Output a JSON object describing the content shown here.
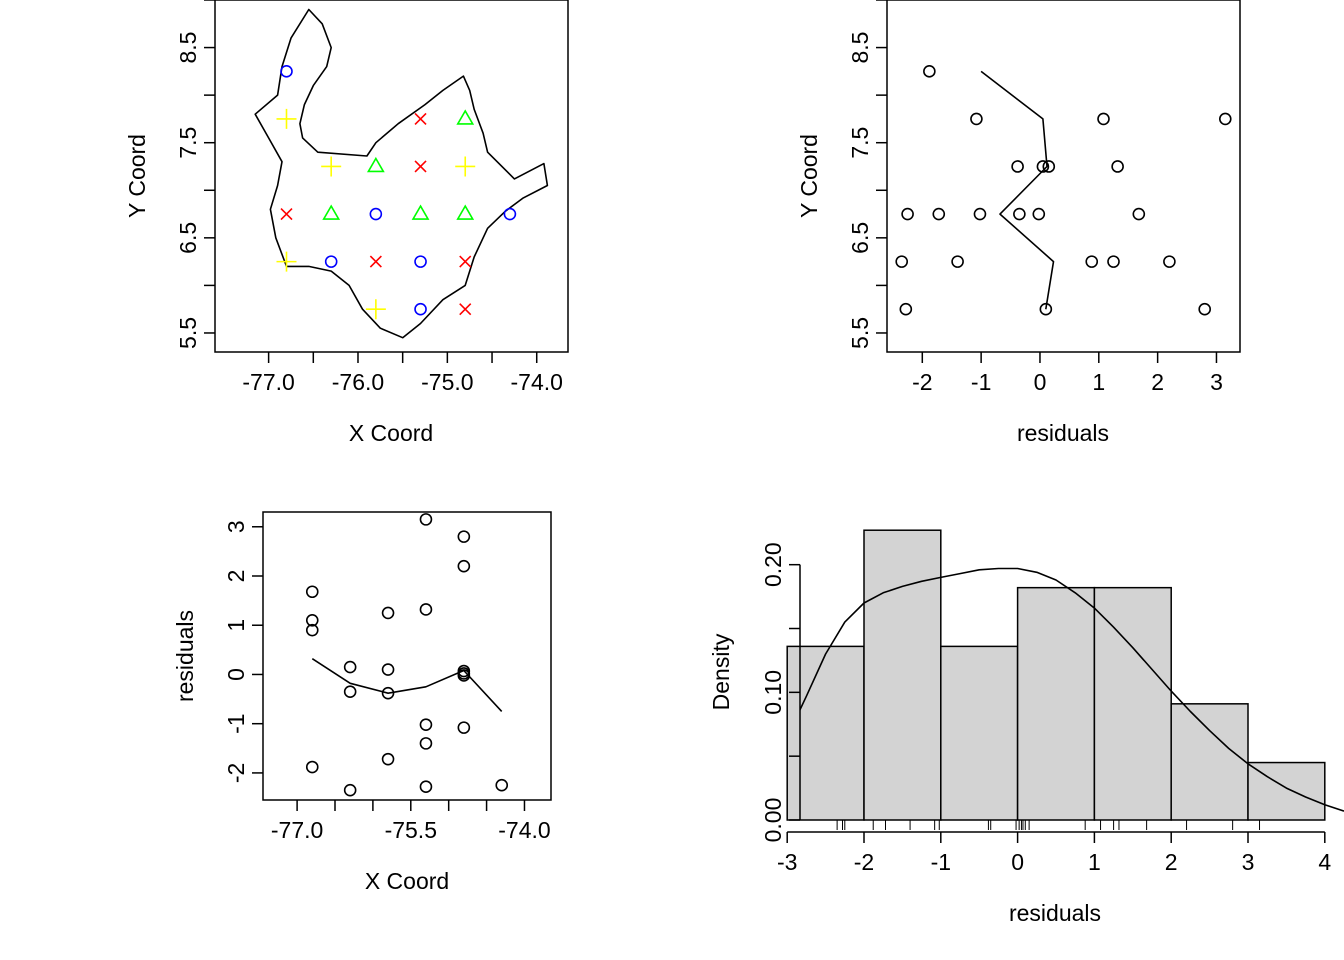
{
  "chart_data": [
    {
      "type": "scatter",
      "panel": "map",
      "xlabel": "X Coord",
      "ylabel": "Y Coord",
      "xlim": [
        -77.6,
        -73.65
      ],
      "ylim": [
        5.3,
        9.0
      ],
      "xticks": [
        -77,
        -76.5,
        -76,
        -75.5,
        -75,
        -74.5,
        -74
      ],
      "xtick_labels": [
        "-77.0",
        "",
        "-76.0",
        "",
        "-75.0",
        "",
        "-74.0"
      ],
      "yticks": [
        5.5,
        6,
        6.5,
        7,
        7.5,
        8,
        8.5,
        9
      ],
      "ytick_labels": [
        "5.5",
        "",
        "6.5",
        "",
        "7.5",
        "",
        "8.5",
        ""
      ],
      "grid": false,
      "boundary": [
        [
          -76.55,
          8.9
        ],
        [
          -76.4,
          8.75
        ],
        [
          -76.3,
          8.5
        ],
        [
          -76.35,
          8.3
        ],
        [
          -76.5,
          8.1
        ],
        [
          -76.6,
          7.9
        ],
        [
          -76.65,
          7.7
        ],
        [
          -76.62,
          7.55
        ],
        [
          -76.45,
          7.4
        ],
        [
          -75.9,
          7.36
        ],
        [
          -75.8,
          7.5
        ],
        [
          -75.55,
          7.7
        ],
        [
          -75.25,
          7.9
        ],
        [
          -75.05,
          8.05
        ],
        [
          -74.82,
          8.2
        ],
        [
          -74.75,
          8.05
        ],
        [
          -74.7,
          7.85
        ],
        [
          -74.6,
          7.6
        ],
        [
          -74.55,
          7.4
        ],
        [
          -74.25,
          7.12
        ],
        [
          -73.92,
          7.28
        ],
        [
          -73.88,
          7.05
        ],
        [
          -74.15,
          6.92
        ],
        [
          -74.35,
          6.78
        ],
        [
          -74.55,
          6.6
        ],
        [
          -74.7,
          6.3
        ],
        [
          -74.8,
          6.0
        ],
        [
          -75.05,
          5.85
        ],
        [
          -75.3,
          5.6
        ],
        [
          -75.5,
          5.45
        ],
        [
          -75.75,
          5.55
        ],
        [
          -75.95,
          5.75
        ],
        [
          -76.1,
          6.0
        ],
        [
          -76.3,
          6.15
        ],
        [
          -76.55,
          6.2
        ],
        [
          -76.8,
          6.2
        ],
        [
          -76.92,
          6.5
        ],
        [
          -76.98,
          6.8
        ],
        [
          -76.9,
          7.05
        ],
        [
          -76.85,
          7.3
        ],
        [
          -77.0,
          7.55
        ],
        [
          -77.15,
          7.8
        ],
        [
          -76.9,
          8.0
        ],
        [
          -76.85,
          8.3
        ],
        [
          -76.75,
          8.6
        ]
      ],
      "series": [
        {
          "marker": "circle",
          "color": "#0000ff",
          "points": [
            [
              -76.8,
              8.25
            ],
            [
              -76.3,
              6.25
            ],
            [
              -75.8,
              6.75
            ],
            [
              -75.3,
              6.25
            ],
            [
              -75.3,
              5.75
            ],
            [
              -74.3,
              6.75
            ]
          ]
        },
        {
          "marker": "cross",
          "color": "#ff0000",
          "points": [
            [
              -76.8,
              6.75
            ],
            [
              -75.8,
              6.25
            ],
            [
              -75.3,
              7.75
            ],
            [
              -75.3,
              7.25
            ],
            [
              -74.8,
              6.25
            ],
            [
              -74.8,
              5.75
            ]
          ]
        },
        {
          "marker": "triangle",
          "color": "#00ff00",
          "points": [
            [
              -75.8,
              7.25
            ],
            [
              -76.3,
              6.75
            ],
            [
              -75.3,
              6.75
            ],
            [
              -74.8,
              6.75
            ],
            [
              -74.8,
              7.75
            ]
          ]
        },
        {
          "marker": "plus",
          "color": "#ffff00",
          "points": [
            [
              -76.8,
              7.75
            ],
            [
              -76.3,
              7.25
            ],
            [
              -74.8,
              7.25
            ],
            [
              -76.8,
              6.25
            ],
            [
              -75.8,
              5.75
            ]
          ]
        }
      ]
    },
    {
      "type": "scatter",
      "panel": "resid-vs-y",
      "xlabel": "residuals",
      "ylabel": "Y Coord",
      "xlim": [
        -2.6,
        3.4
      ],
      "ylim": [
        5.3,
        9.0
      ],
      "xticks": [
        -2,
        -1,
        0,
        1,
        2,
        3
      ],
      "xtick_labels": [
        "-2",
        "-1",
        "0",
        "1",
        "2",
        "3"
      ],
      "yticks": [
        5.5,
        6,
        6.5,
        7,
        7.5,
        8,
        8.5,
        9
      ],
      "ytick_labels": [
        "5.5",
        "",
        "6.5",
        "",
        "7.5",
        "",
        "8.5",
        ""
      ],
      "grid": false,
      "points": [
        [
          -1.88,
          8.25
        ],
        [
          -1.08,
          7.75
        ],
        [
          1.08,
          7.75
        ],
        [
          3.15,
          7.75
        ],
        [
          -0.38,
          7.25
        ],
        [
          0.05,
          7.25
        ],
        [
          0.15,
          7.25
        ],
        [
          1.32,
          7.25
        ],
        [
          -2.25,
          6.75
        ],
        [
          -1.72,
          6.75
        ],
        [
          -1.02,
          6.75
        ],
        [
          -0.35,
          6.75
        ],
        [
          -0.02,
          6.75
        ],
        [
          1.68,
          6.75
        ],
        [
          -2.35,
          6.25
        ],
        [
          -1.4,
          6.25
        ],
        [
          0.88,
          6.25
        ],
        [
          1.25,
          6.25
        ],
        [
          2.2,
          6.25
        ],
        [
          -2.28,
          5.75
        ],
        [
          0.1,
          5.75
        ],
        [
          2.8,
          5.75
        ]
      ],
      "smooth_line": [
        [
          -1.0,
          8.25
        ],
        [
          0.05,
          7.75
        ],
        [
          0.12,
          7.25
        ],
        [
          -0.68,
          6.75
        ],
        [
          0.23,
          6.25
        ],
        [
          0.1,
          5.75
        ]
      ]
    },
    {
      "type": "scatter",
      "panel": "x-vs-resid",
      "xlabel": "X Coord",
      "ylabel": "residuals",
      "xlim": [
        -77.45,
        -73.65
      ],
      "ylim": [
        -2.55,
        3.3
      ],
      "xticks": [
        -77,
        -76.5,
        -76,
        -75.5,
        -75,
        -74.5,
        -74
      ],
      "xtick_labels": [
        "-77.0",
        "",
        "",
        "-75.5",
        "",
        "",
        "-74.0"
      ],
      "yticks": [
        -2,
        -1,
        0,
        1,
        2,
        3
      ],
      "ytick_labels": [
        "-2",
        "-1",
        "0",
        "1",
        "2",
        "3"
      ],
      "grid": false,
      "points": [
        [
          -76.8,
          1.68
        ],
        [
          -76.8,
          1.1
        ],
        [
          -76.8,
          0.9
        ],
        [
          -76.8,
          -1.88
        ],
        [
          -76.3,
          0.15
        ],
        [
          -76.3,
          -0.35
        ],
        [
          -76.3,
          -2.35
        ],
        [
          -75.8,
          1.25
        ],
        [
          -75.8,
          0.1
        ],
        [
          -75.8,
          -0.38
        ],
        [
          -75.8,
          -1.72
        ],
        [
          -75.3,
          3.15
        ],
        [
          -75.3,
          1.32
        ],
        [
          -75.3,
          -1.02
        ],
        [
          -75.3,
          -1.4
        ],
        [
          -75.3,
          -2.28
        ],
        [
          -74.8,
          2.8
        ],
        [
          -74.8,
          2.2
        ],
        [
          -74.8,
          0.07
        ],
        [
          -74.8,
          0.02
        ],
        [
          -74.8,
          -0.02
        ],
        [
          -74.8,
          -1.08
        ],
        [
          -74.3,
          -2.25
        ]
      ],
      "smooth_line": [
        [
          -76.8,
          0.32
        ],
        [
          -76.3,
          -0.18
        ],
        [
          -75.8,
          -0.38
        ],
        [
          -75.3,
          -0.25
        ],
        [
          -74.8,
          0.08
        ],
        [
          -74.3,
          -0.75
        ]
      ]
    },
    {
      "type": "bar",
      "panel": "histogram",
      "xlabel": "residuals",
      "ylabel": "Density",
      "xlim": [
        -3.25,
        4.25
      ],
      "ylim": [
        0,
        0.235
      ],
      "xticks": [
        -3,
        -2,
        -1,
        0,
        1,
        2,
        3,
        4
      ],
      "xtick_labels": [
        "-3",
        "-2",
        "-1",
        "0",
        "1",
        "2",
        "3",
        "4"
      ],
      "yticks": [
        0,
        0.05,
        0.1,
        0.15,
        0.2
      ],
      "ytick_labels": [
        "0.00",
        "",
        "0.10",
        "",
        "0.20"
      ],
      "grid": false,
      "bar_color": "#d3d3d3",
      "bins": [
        [
          -3,
          -2
        ],
        [
          -2,
          -1
        ],
        [
          -1,
          0
        ],
        [
          0,
          1
        ],
        [
          1,
          2
        ],
        [
          2,
          3
        ],
        [
          3,
          4
        ]
      ],
      "values": [
        0.136,
        0.227,
        0.136,
        0.182,
        0.182,
        0.091,
        0.045
      ],
      "density_curve": [
        [
          -3.25,
          0.04
        ],
        [
          -3.0,
          0.065
        ],
        [
          -2.75,
          0.097
        ],
        [
          -2.5,
          0.13
        ],
        [
          -2.25,
          0.155
        ],
        [
          -2.0,
          0.17
        ],
        [
          -1.75,
          0.178
        ],
        [
          -1.5,
          0.183
        ],
        [
          -1.25,
          0.187
        ],
        [
          -1.0,
          0.19
        ],
        [
          -0.75,
          0.193
        ],
        [
          -0.5,
          0.196
        ],
        [
          -0.25,
          0.197
        ],
        [
          0.0,
          0.197
        ],
        [
          0.25,
          0.194
        ],
        [
          0.5,
          0.188
        ],
        [
          0.75,
          0.178
        ],
        [
          1.0,
          0.166
        ],
        [
          1.25,
          0.151
        ],
        [
          1.5,
          0.135
        ],
        [
          1.75,
          0.118
        ],
        [
          2.0,
          0.101
        ],
        [
          2.25,
          0.085
        ],
        [
          2.5,
          0.07
        ],
        [
          2.75,
          0.056
        ],
        [
          3.0,
          0.044
        ],
        [
          3.25,
          0.034
        ],
        [
          3.5,
          0.025
        ],
        [
          3.75,
          0.018
        ],
        [
          4.0,
          0.012
        ],
        [
          4.25,
          0.007
        ]
      ],
      "rug": [
        -2.35,
        -2.28,
        -2.25,
        -1.88,
        -1.72,
        -1.4,
        -1.08,
        -1.02,
        -0.38,
        -0.35,
        -0.02,
        0.02,
        0.05,
        0.07,
        0.1,
        0.15,
        0.88,
        1.08,
        1.25,
        1.32,
        1.68,
        2.2,
        2.8,
        3.15
      ]
    }
  ]
}
